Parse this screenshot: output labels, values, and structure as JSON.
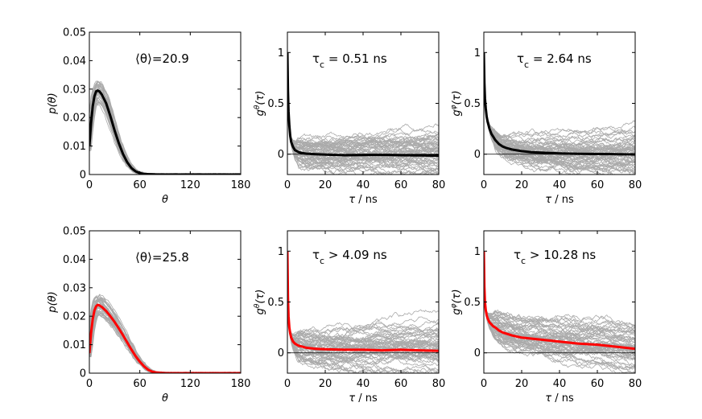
{
  "chart_data": [
    {
      "id": "top-left",
      "type": "line",
      "title": "",
      "annotation_prefix": "⟨θ⟩=",
      "annotation_value": "20.9",
      "xlabel": "θ",
      "ylabel": "p(θ)",
      "xlim": [
        0,
        180
      ],
      "ylim": [
        0,
        0.05
      ],
      "xticks": [
        0,
        60,
        120,
        180
      ],
      "yticks": [
        0,
        0.01,
        0.02,
        0.03,
        0.04,
        0.05
      ],
      "ytick_labels": [
        "0",
        "0.01",
        "0.02",
        "0.03",
        "0.04",
        "0.05"
      ],
      "mean_color": "#000000",
      "band_color": "#aaaaaa",
      "series": [
        {
          "name": "mean",
          "x": [
            0,
            2,
            4,
            6,
            8,
            10,
            12,
            15,
            20,
            25,
            30,
            35,
            40,
            45,
            50,
            55,
            60,
            65,
            70,
            75,
            80,
            90,
            100,
            120,
            150,
            180
          ],
          "y": [
            0.01,
            0.018,
            0.024,
            0.0275,
            0.0292,
            0.0295,
            0.0292,
            0.028,
            0.025,
            0.0205,
            0.0155,
            0.011,
            0.0072,
            0.0043,
            0.0023,
            0.0011,
            0.0005,
            0.0002,
            0.0001,
            5e-05,
            0,
            0,
            0,
            0,
            0,
            0
          ]
        }
      ]
    },
    {
      "id": "top-middle",
      "type": "line",
      "annotation_label": "τ",
      "annotation_sub": "c",
      "annotation_rest": " = 0.51 ns",
      "xlabel": "τ / ns",
      "ylabel": "g^θ(τ)",
      "xlim": [
        0,
        80
      ],
      "ylim": [
        -0.2,
        1.2
      ],
      "xticks": [
        0,
        20,
        40,
        60,
        80
      ],
      "yticks": [
        0,
        0.5,
        1
      ],
      "ytick_labels": [
        "0",
        "0.5",
        "1"
      ],
      "mean_color": "#000000",
      "band_color": "#aaaaaa",
      "series": [
        {
          "name": "mean",
          "x": [
            0,
            0.3,
            0.6,
            1,
            1.5,
            2,
            3,
            4,
            6,
            8,
            10,
            15,
            20,
            30,
            40,
            50,
            60,
            70,
            80
          ],
          "y": [
            1.0,
            0.62,
            0.42,
            0.28,
            0.18,
            0.12,
            0.07,
            0.04,
            0.02,
            0.01,
            0.005,
            0.0,
            -0.005,
            -0.01,
            -0.008,
            -0.006,
            -0.01,
            -0.012,
            -0.015
          ]
        }
      ]
    },
    {
      "id": "top-right",
      "type": "line",
      "annotation_label": "τ",
      "annotation_sub": "c",
      "annotation_rest": " = 2.64 ns",
      "xlabel": "τ / ns",
      "ylabel": "g^φ(τ)",
      "xlim": [
        0,
        80
      ],
      "ylim": [
        -0.2,
        1.2
      ],
      "xticks": [
        0,
        20,
        40,
        60,
        80
      ],
      "yticks": [
        0,
        0.5,
        1
      ],
      "ytick_labels": [
        "0",
        "0.5",
        "1"
      ],
      "mean_color": "#000000",
      "band_color": "#aaaaaa",
      "series": [
        {
          "name": "mean",
          "x": [
            0,
            0.3,
            0.6,
            1,
            1.5,
            2,
            3,
            4,
            5,
            6,
            8,
            10,
            12,
            15,
            20,
            25,
            30,
            40,
            50,
            60,
            70,
            80
          ],
          "y": [
            1.0,
            0.7,
            0.55,
            0.45,
            0.37,
            0.32,
            0.25,
            0.2,
            0.17,
            0.14,
            0.1,
            0.075,
            0.06,
            0.045,
            0.03,
            0.02,
            0.015,
            0.008,
            0.004,
            0.002,
            0.0,
            -0.002
          ]
        }
      ]
    },
    {
      "id": "bottom-left",
      "type": "line",
      "annotation_prefix": "⟨θ⟩=",
      "annotation_value": "25.8",
      "xlabel": "θ",
      "ylabel": "p(θ)",
      "xlim": [
        0,
        180
      ],
      "ylim": [
        0,
        0.05
      ],
      "xticks": [
        0,
        60,
        120,
        180
      ],
      "yticks": [
        0,
        0.01,
        0.02,
        0.03,
        0.04,
        0.05
      ],
      "ytick_labels": [
        "0",
        "0.01",
        "0.02",
        "0.03",
        "0.04",
        "0.05"
      ],
      "mean_color": "#ff0000",
      "band_color": "#aaaaaa",
      "series": [
        {
          "name": "mean",
          "x": [
            0,
            2,
            4,
            6,
            8,
            10,
            12,
            15,
            20,
            25,
            30,
            35,
            40,
            45,
            50,
            55,
            60,
            65,
            70,
            75,
            80,
            85,
            90,
            100,
            120,
            150,
            180
          ],
          "y": [
            0.007,
            0.014,
            0.019,
            0.022,
            0.0235,
            0.024,
            0.0238,
            0.0232,
            0.0218,
            0.02,
            0.018,
            0.0157,
            0.0133,
            0.0108,
            0.0083,
            0.006,
            0.004,
            0.0024,
            0.0012,
            0.0005,
            0.0002,
            0.0001,
            0,
            0,
            0,
            0,
            0
          ]
        }
      ]
    },
    {
      "id": "bottom-middle",
      "type": "line",
      "annotation_label": "τ",
      "annotation_sub": "c",
      "annotation_rest": " > 4.09 ns",
      "xlabel": "τ / ns",
      "ylabel": "g^θ(τ)",
      "xlim": [
        0,
        80
      ],
      "ylim": [
        -0.2,
        1.2
      ],
      "xticks": [
        0,
        20,
        40,
        60,
        80
      ],
      "yticks": [
        0,
        0.5,
        1
      ],
      "ytick_labels": [
        "0",
        "0.5",
        "1"
      ],
      "mean_color": "#ff0000",
      "band_color": "#aaaaaa",
      "series": [
        {
          "name": "mean",
          "x": [
            0,
            0.3,
            0.6,
            1,
            1.5,
            2,
            3,
            4,
            6,
            8,
            10,
            15,
            20,
            30,
            40,
            50,
            60,
            70,
            80
          ],
          "y": [
            1.0,
            0.55,
            0.36,
            0.25,
            0.19,
            0.15,
            0.11,
            0.09,
            0.07,
            0.06,
            0.05,
            0.04,
            0.035,
            0.03,
            0.03,
            0.025,
            0.03,
            0.025,
            0.02
          ]
        }
      ]
    },
    {
      "id": "bottom-right",
      "type": "line",
      "annotation_label": "τ",
      "annotation_sub": "c",
      "annotation_rest": " > 10.28 ns",
      "xlabel": "τ / ns",
      "ylabel": "g^φ(τ)",
      "xlim": [
        0,
        80
      ],
      "ylim": [
        -0.2,
        1.2
      ],
      "xticks": [
        0,
        20,
        40,
        60,
        80
      ],
      "yticks": [
        0,
        0.5,
        1
      ],
      "ytick_labels": [
        "0",
        "0.5",
        "1"
      ],
      "mean_color": "#ff0000",
      "band_color": "#aaaaaa",
      "series": [
        {
          "name": "mean",
          "x": [
            0,
            0.3,
            0.6,
            1,
            1.5,
            2,
            3,
            4,
            5,
            6,
            8,
            10,
            15,
            20,
            30,
            40,
            50,
            60,
            70,
            80
          ],
          "y": [
            1.0,
            0.65,
            0.5,
            0.42,
            0.37,
            0.34,
            0.3,
            0.28,
            0.26,
            0.25,
            0.22,
            0.2,
            0.17,
            0.15,
            0.13,
            0.11,
            0.09,
            0.08,
            0.06,
            0.04
          ]
        }
      ]
    }
  ]
}
